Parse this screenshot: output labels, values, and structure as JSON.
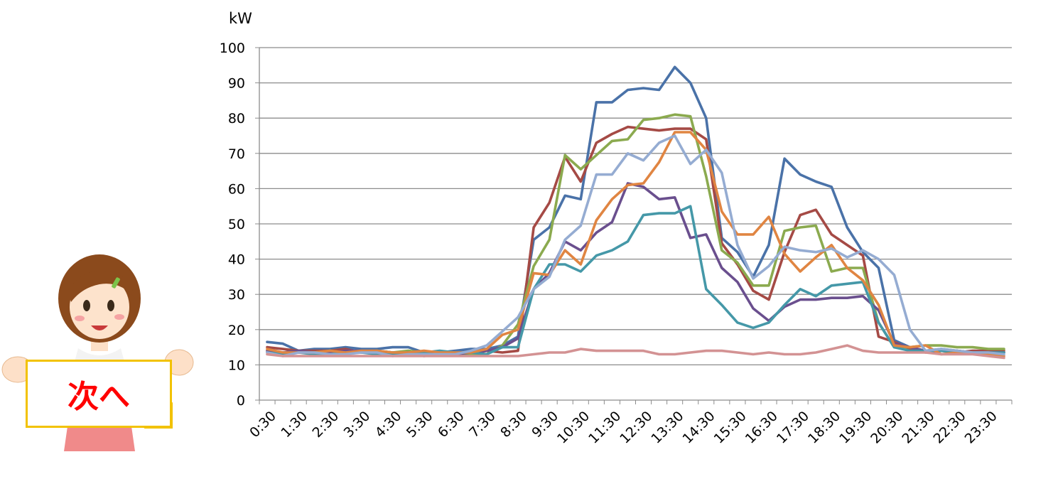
{
  "nav": {
    "next_label": "次へ"
  },
  "chart_data": {
    "type": "line",
    "title": "",
    "xlabel": "",
    "ylabel": "kW",
    "ylim": [
      0,
      100
    ],
    "yticks": [
      0,
      10,
      20,
      30,
      40,
      50,
      60,
      70,
      80,
      90,
      100
    ],
    "grid": true,
    "legend": "none",
    "x": [
      "0:30",
      "1:00",
      "1:30",
      "2:00",
      "2:30",
      "3:00",
      "3:30",
      "4:00",
      "4:30",
      "5:00",
      "5:30",
      "6:00",
      "6:30",
      "7:00",
      "7:30",
      "8:00",
      "8:30",
      "9:00",
      "9:30",
      "10:00",
      "10:30",
      "11:00",
      "11:30",
      "12:00",
      "12:30",
      "13:00",
      "13:30",
      "14:00",
      "14:30",
      "15:00",
      "15:30",
      "16:00",
      "16:30",
      "17:00",
      "17:30",
      "18:00",
      "18:30",
      "19:00",
      "19:30",
      "20:00",
      "20:30",
      "21:00",
      "21:30",
      "22:00",
      "22:30",
      "23:00",
      "23:30",
      "0:00"
    ],
    "xtick_labels": [
      "0:30",
      "1:30",
      "2:30",
      "3:30",
      "4:30",
      "5:30",
      "6:30",
      "7:30",
      "8:30",
      "9:30",
      "10:30",
      "11:30",
      "12:30",
      "13:30",
      "14:30",
      "15:30",
      "16:30",
      "17:30",
      "18:30",
      "19:30",
      "20:30",
      "21:30",
      "22:30",
      "23:30"
    ],
    "series": [
      {
        "color": "#4a72a8",
        "values": [
          16.5,
          16,
          14,
          14.5,
          14.5,
          15,
          14.5,
          14.5,
          15,
          15,
          13.5,
          13.5,
          14,
          14.5,
          14.5,
          15.5,
          18,
          45.5,
          49,
          58,
          57,
          84.5,
          84.5,
          88,
          88.5,
          88,
          94.5,
          90,
          80,
          46,
          42,
          35,
          44,
          68.5,
          64,
          62,
          60.5,
          49,
          42,
          37.5,
          17,
          15,
          14,
          14.5,
          14,
          13.5,
          13.5,
          13.5
        ]
      },
      {
        "color": "#a54a45",
        "values": [
          15,
          14.5,
          14,
          14,
          14,
          14.5,
          13.5,
          14,
          13.5,
          13.5,
          12.5,
          13,
          13,
          13,
          14,
          13.5,
          14,
          49,
          56,
          69,
          62,
          73,
          75.5,
          77.5,
          77,
          76.5,
          77,
          77,
          74,
          44.5,
          38.5,
          31,
          28.5,
          42,
          52.5,
          54,
          47,
          44,
          41,
          18,
          16.5,
          14.5,
          13.5,
          14,
          13.5,
          14,
          14,
          14
        ]
      },
      {
        "color": "#8baa4f",
        "values": [
          14,
          13.5,
          13.5,
          13.5,
          14,
          13.5,
          13.5,
          14,
          13.5,
          14,
          13.5,
          13,
          13,
          13,
          13,
          15.5,
          21.5,
          38,
          45.5,
          69.5,
          65.5,
          69.5,
          73.5,
          74,
          79.5,
          80,
          81,
          80.5,
          63.5,
          42.5,
          39,
          32.5,
          32.5,
          48,
          49,
          49.5,
          36.5,
          37.5,
          37.5,
          22,
          15,
          15,
          15.5,
          15.5,
          15,
          15,
          14.5,
          14.5
        ]
      },
      {
        "color": "#6a4f8e",
        "values": [
          14,
          13.5,
          14,
          13.5,
          13.5,
          14,
          14,
          13.5,
          13,
          13.5,
          13,
          13.5,
          13,
          13.5,
          14,
          15,
          17.5,
          31.5,
          36,
          45,
          42.5,
          47.5,
          50.5,
          61.5,
          60.5,
          57,
          57.5,
          46,
          47,
          37.5,
          33.5,
          26,
          22.5,
          26.5,
          28.5,
          28.5,
          29,
          29,
          29.5,
          25.5,
          16,
          15,
          14,
          14,
          14,
          13.5,
          13.5,
          13.5
        ]
      },
      {
        "color": "#4598a8",
        "values": [
          13.5,
          13,
          13.5,
          13,
          13,
          13.5,
          13.5,
          13,
          13,
          13.5,
          13.5,
          14,
          13.5,
          13.5,
          13,
          15,
          15,
          31.5,
          38.5,
          38.5,
          36.5,
          41,
          42.5,
          45,
          52.5,
          53,
          53,
          55,
          31.5,
          27,
          22,
          20.5,
          22,
          27,
          31.5,
          29.5,
          32.5,
          33,
          33.5,
          22,
          15,
          14,
          14,
          14,
          13.5,
          13.5,
          13.5,
          13.5
        ]
      },
      {
        "color": "#e08542",
        "values": [
          14.5,
          13.5,
          13.5,
          13.5,
          14,
          13.5,
          14,
          14,
          13.5,
          13.5,
          14,
          13.5,
          13.5,
          13.5,
          14.5,
          18.5,
          20,
          36,
          35.5,
          42.5,
          38.5,
          51,
          57,
          61,
          61.5,
          67.5,
          76,
          76,
          71,
          53.5,
          47,
          47,
          52,
          41.5,
          36.5,
          40.5,
          44,
          37.5,
          34,
          27,
          15.5,
          15,
          15.5,
          13,
          13.5,
          13.5,
          13,
          12.5
        ]
      },
      {
        "color": "#95acd2",
        "values": [
          13.5,
          12.5,
          13.5,
          13.5,
          13,
          13,
          13.5,
          13.5,
          12.5,
          13,
          13,
          13,
          13,
          14,
          15.5,
          19.5,
          23.5,
          31.5,
          35,
          45.5,
          49.5,
          64,
          64,
          70,
          68,
          73,
          75,
          67,
          71,
          64.5,
          44,
          34.5,
          38,
          43.5,
          42.5,
          42,
          43,
          40.5,
          42.5,
          40,
          35.5,
          20,
          14,
          14.5,
          14,
          13.5,
          13.5,
          13
        ]
      },
      {
        "color": "#d39293",
        "values": [
          13,
          12.5,
          12.5,
          12.5,
          12.5,
          12.5,
          12.5,
          12.5,
          12.5,
          12.5,
          12.5,
          12.5,
          12.5,
          12.5,
          12.5,
          12.5,
          12.5,
          13,
          13.5,
          13.5,
          14.5,
          14,
          14,
          14,
          14,
          13,
          13,
          13.5,
          14,
          14,
          13.5,
          13,
          13.5,
          13,
          13,
          13.5,
          14.5,
          15.5,
          14,
          13.5,
          13.5,
          13.5,
          13.5,
          13,
          13,
          13,
          12.5,
          12
        ]
      }
    ]
  }
}
